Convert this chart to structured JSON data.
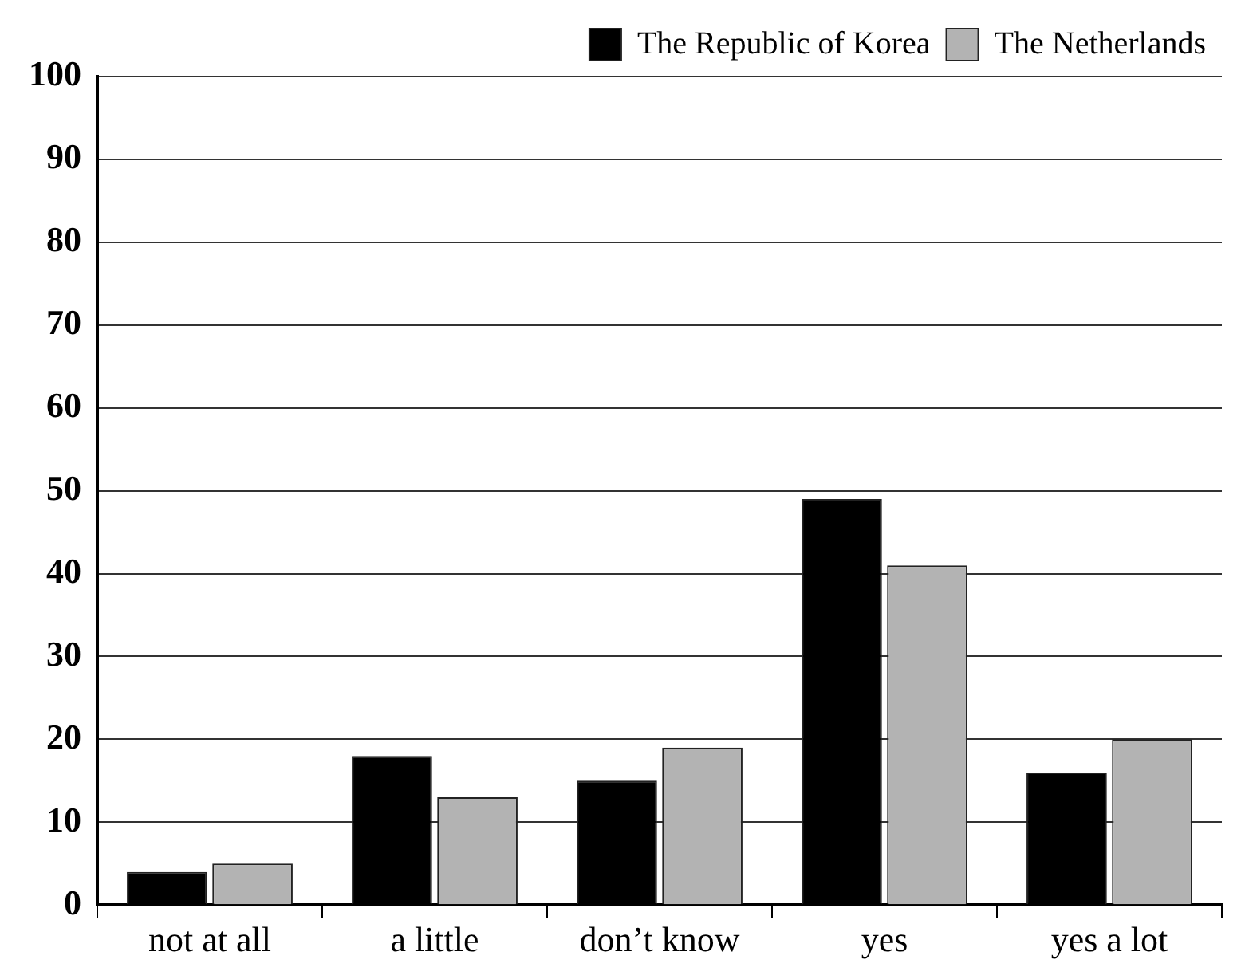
{
  "chart_data": {
    "type": "bar",
    "categories": [
      "not at all",
      "a little",
      "don’t know",
      "yes",
      "yes a lot"
    ],
    "series": [
      {
        "name": "The Republic of Korea",
        "color": "#000000",
        "values": [
          4,
          18,
          15,
          49,
          16
        ]
      },
      {
        "name": "The Netherlands",
        "color": "#b3b3b3",
        "values": [
          5,
          13,
          19,
          41,
          20
        ]
      }
    ],
    "ylim": [
      0,
      100
    ],
    "yticks": [
      0,
      10,
      20,
      30,
      40,
      50,
      60,
      70,
      80,
      90,
      100
    ],
    "grid": "y",
    "legend": "top right"
  }
}
